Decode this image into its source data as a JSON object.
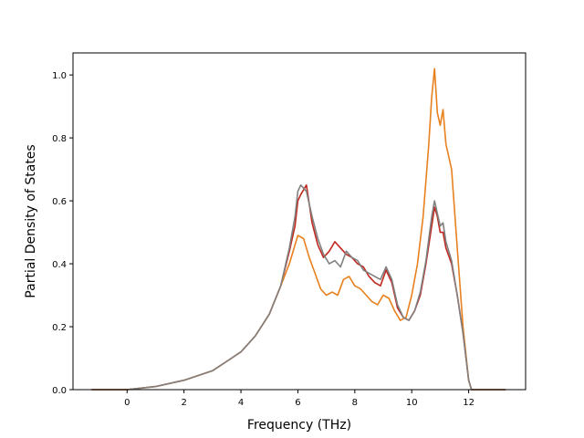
{
  "chart_data": {
    "type": "line",
    "title": "",
    "xlabel": "Frequency (THz)",
    "ylabel": "Partial Density of States",
    "xlim": [
      -1.9,
      14.0
    ],
    "ylim": [
      0.0,
      1.07
    ],
    "x_ticks": [
      0,
      2,
      4,
      6,
      8,
      10,
      12
    ],
    "y_ticks": [
      0.0,
      0.2,
      0.4,
      0.6,
      0.8,
      1.0
    ],
    "x_tick_labels": [
      "0",
      "2",
      "4",
      "6",
      "8",
      "10",
      "12"
    ],
    "y_tick_labels": [
      "0.0",
      "0.2",
      "0.4",
      "0.6",
      "0.8",
      "1.0"
    ],
    "grid": false,
    "legend": "none",
    "series": [
      {
        "color": "#c0281e",
        "x": [
          -1.25,
          0,
          1,
          2,
          3,
          3.5,
          4,
          4.5,
          5,
          5.4,
          5.7,
          5.9,
          6.0,
          6.1,
          6.3,
          6.5,
          6.7,
          6.9,
          7.1,
          7.3,
          7.5,
          7.7,
          7.9,
          8.1,
          8.3,
          8.5,
          8.7,
          8.9,
          9.1,
          9.3,
          9.5,
          9.7,
          9.9,
          10.1,
          10.3,
          10.5,
          10.7,
          10.8,
          10.9,
          11.0,
          11.1,
          11.2,
          11.4,
          11.6,
          11.8,
          12.0,
          12.1,
          13.3
        ],
        "y": [
          0.0,
          0.0,
          0.01,
          0.03,
          0.06,
          0.09,
          0.12,
          0.17,
          0.24,
          0.33,
          0.44,
          0.52,
          0.6,
          0.62,
          0.65,
          0.53,
          0.46,
          0.42,
          0.44,
          0.47,
          0.45,
          0.43,
          0.42,
          0.4,
          0.39,
          0.36,
          0.34,
          0.33,
          0.38,
          0.34,
          0.26,
          0.23,
          0.22,
          0.25,
          0.3,
          0.4,
          0.52,
          0.58,
          0.55,
          0.5,
          0.5,
          0.45,
          0.4,
          0.3,
          0.18,
          0.03,
          0.0,
          0.0
        ]
      },
      {
        "color": "#e8801e",
        "x": [
          -1.25,
          0,
          1,
          2,
          3,
          3.5,
          4,
          4.5,
          5,
          5.4,
          5.7,
          5.9,
          6.0,
          6.2,
          6.4,
          6.6,
          6.8,
          7.0,
          7.2,
          7.4,
          7.6,
          7.8,
          8.0,
          8.2,
          8.4,
          8.6,
          8.8,
          9.0,
          9.2,
          9.4,
          9.6,
          9.8,
          10.0,
          10.2,
          10.4,
          10.6,
          10.7,
          10.8,
          10.9,
          11.0,
          11.1,
          11.2,
          11.4,
          11.6,
          11.8,
          12.0,
          12.1,
          13.3
        ],
        "y": [
          0.0,
          0.0,
          0.01,
          0.03,
          0.06,
          0.09,
          0.12,
          0.17,
          0.24,
          0.33,
          0.4,
          0.46,
          0.49,
          0.48,
          0.42,
          0.37,
          0.32,
          0.3,
          0.31,
          0.3,
          0.35,
          0.36,
          0.33,
          0.32,
          0.3,
          0.28,
          0.27,
          0.3,
          0.29,
          0.25,
          0.22,
          0.23,
          0.3,
          0.4,
          0.55,
          0.78,
          0.93,
          1.02,
          0.88,
          0.84,
          0.89,
          0.78,
          0.7,
          0.45,
          0.2,
          0.03,
          0.0,
          0.0
        ]
      },
      {
        "color": "#808080",
        "x": [
          -1.25,
          0,
          1,
          2,
          3,
          3.5,
          4,
          4.5,
          5,
          5.4,
          5.7,
          5.9,
          6.0,
          6.1,
          6.3,
          6.5,
          6.7,
          6.9,
          7.1,
          7.3,
          7.5,
          7.7,
          7.9,
          8.1,
          8.3,
          8.5,
          8.7,
          8.9,
          9.1,
          9.3,
          9.5,
          9.7,
          9.9,
          10.1,
          10.3,
          10.5,
          10.7,
          10.8,
          10.9,
          11.0,
          11.1,
          11.2,
          11.4,
          11.6,
          11.8,
          12.0,
          12.1,
          13.3
        ],
        "y": [
          0.0,
          0.0,
          0.01,
          0.03,
          0.06,
          0.09,
          0.12,
          0.17,
          0.24,
          0.33,
          0.45,
          0.55,
          0.63,
          0.65,
          0.63,
          0.55,
          0.48,
          0.43,
          0.4,
          0.41,
          0.39,
          0.44,
          0.42,
          0.41,
          0.38,
          0.37,
          0.36,
          0.35,
          0.39,
          0.35,
          0.27,
          0.23,
          0.22,
          0.25,
          0.31,
          0.41,
          0.55,
          0.6,
          0.56,
          0.52,
          0.53,
          0.47,
          0.41,
          0.3,
          0.18,
          0.03,
          0.0,
          0.0
        ]
      }
    ]
  }
}
